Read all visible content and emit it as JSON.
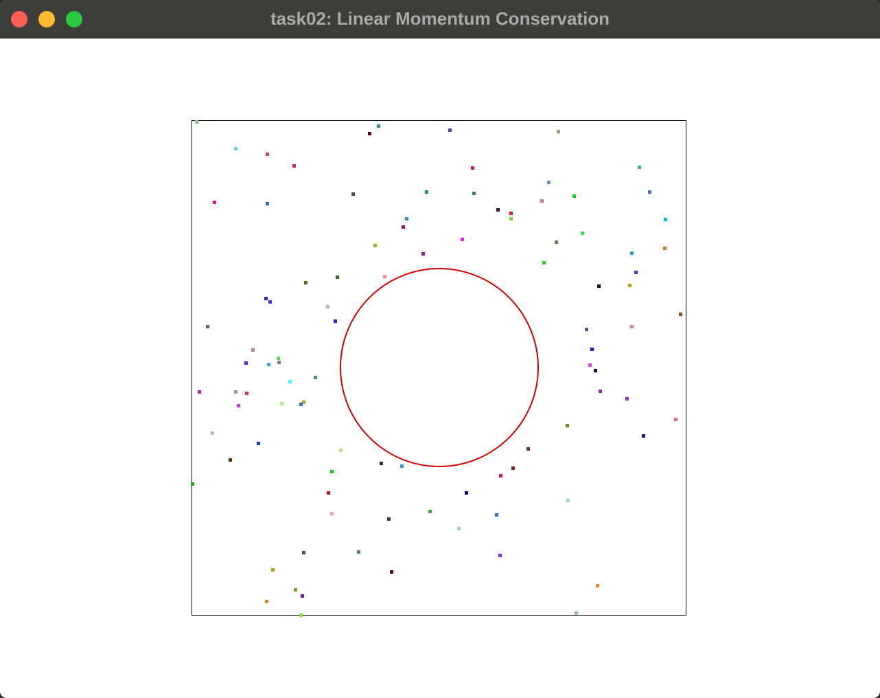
{
  "window": {
    "title": "task02: Linear Momentum Conservation",
    "traffic_lights": [
      {
        "name": "close-button",
        "color": "#fe5f57"
      },
      {
        "name": "minimize-button",
        "color": "#febc2e"
      },
      {
        "name": "zoom-button",
        "color": "#28c840"
      }
    ]
  },
  "simulation": {
    "box_color": "#000000",
    "circle_color": "#d40000",
    "particles": [
      [
        "#7fc97f"
      ],
      [
        "#3a8f8f"
      ],
      [
        "#4b0a1a"
      ],
      [
        "#6a3fa3"
      ],
      [
        "#9aa17a"
      ],
      [
        "#62d9e8"
      ],
      [
        "#c8426b"
      ],
      [
        "#d6245c"
      ],
      [
        "#3fa0b8"
      ],
      [
        "#d01f8f"
      ],
      [
        "#3d6eb0"
      ],
      [
        "#3a4a5e"
      ],
      [
        "#138f8a"
      ],
      [
        "#d0176c"
      ],
      [
        "#3a7a7a"
      ],
      [
        "#11d111"
      ],
      [
        "#c07a9a"
      ],
      [
        "#6a92b8"
      ],
      [
        "#3d73cf"
      ],
      [
        "#14b6c9"
      ],
      [
        "#50103a"
      ],
      [
        "#3e8ab0"
      ],
      [
        "#8a1a6a"
      ],
      [
        "#d01f3a"
      ],
      [
        "#2a3aa0"
      ],
      [
        "#7fbf3a"
      ],
      [
        "#e224e2"
      ],
      [
        "#7a6a5a"
      ],
      [
        "#33dd55"
      ],
      [
        "#c07f14"
      ],
      [
        "#8ad13a"
      ],
      [
        "#a01aa0"
      ],
      [
        "#22cc33"
      ],
      [
        "#2ba0b8"
      ],
      [
        "#6a6a14"
      ],
      [
        "#3d6a2a"
      ],
      [
        "#ff8f7a"
      ],
      [
        "#5a30d0"
      ],
      [
        "#2a0a14"
      ],
      [
        "#b89a10"
      ],
      [
        "#4a1ad0"
      ],
      [
        "#5033cf"
      ],
      [
        "#d4a6c0"
      ],
      [
        "#2a1ad0"
      ],
      [
        "#6a6a4a"
      ],
      [
        "#5a5a8a"
      ],
      [
        "#e07f9a"
      ],
      [
        "#b886a6"
      ],
      [
        "#60e050"
      ],
      [
        "#1a1acf"
      ],
      [
        "#5a2acf"
      ],
      [
        "#3aaab8"
      ],
      [
        "#8a7a6a"
      ],
      [
        "#e240e2"
      ],
      [
        "#0a0a4a"
      ],
      [
        "#3d8a8a"
      ],
      [
        "#3affff"
      ],
      [
        "#d0179a"
      ],
      [
        "#9aa0a6"
      ],
      [
        "#d4344f"
      ],
      [
        "#9a26a6"
      ],
      [
        "#b8a020"
      ],
      [
        "#aaf08a"
      ],
      [
        "#2a7ae0"
      ],
      [
        "#d030f0"
      ],
      [
        "#7a3acf"
      ],
      [
        "#ec5f7a"
      ],
      [
        "#c7a6f0"
      ],
      [
        "#8a7a14"
      ],
      [
        "#1a3ad0"
      ],
      [
        "#1a1a8a"
      ],
      [
        "#5a3014"
      ],
      [
        "#c7d77a"
      ],
      [
        "#6a3414"
      ],
      [
        "#6a2a14"
      ],
      [
        "#1a3a0a"
      ],
      [
        "#2aa0e0"
      ],
      [
        "#11d111"
      ],
      [
        "#e0106a"
      ],
      [
        "#8a5014"
      ],
      [
        "#c8141a"
      ],
      [
        "#0a0a6a"
      ],
      [
        "#2ba02b"
      ],
      [
        "#9adcbf"
      ],
      [
        "#e0a0d0"
      ],
      [
        "#4a3a4a"
      ],
      [
        "#3a6ad0"
      ],
      [
        "#3aa03a"
      ],
      [
        "#a8d8a8"
      ],
      [
        "#4a4a6a"
      ],
      [
        "#4a7a8a"
      ],
      [
        "#7a30e0"
      ],
      [
        "#4a0a3a"
      ],
      [
        "#b8a014"
      ],
      [
        "#e08a14"
      ],
      [
        "#7aa030"
      ],
      [
        "#6a20a0"
      ],
      [
        "#e08a14"
      ],
      [
        "#7fe030"
      ],
      [
        "#8fbfaa"
      ]
    ]
  }
}
